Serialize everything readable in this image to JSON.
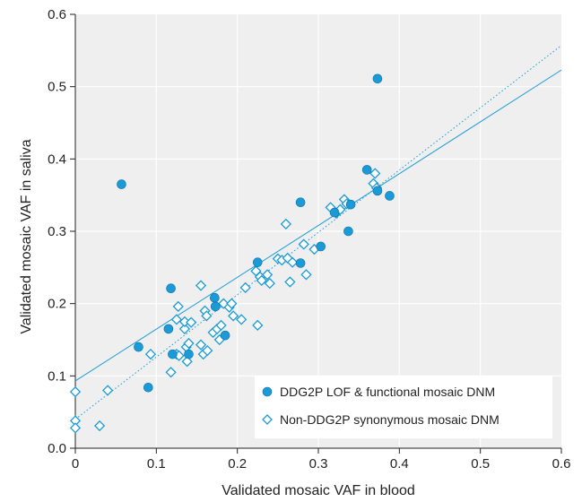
{
  "chart_data": {
    "type": "scatter",
    "xlabel": "Validated mosaic VAF in blood",
    "ylabel": "Validated mosaic VAF in saliva",
    "xlim": [
      0,
      0.6
    ],
    "ylim": [
      0,
      0.6
    ],
    "xticks": [
      "0",
      "0.1",
      "0.2",
      "0.3",
      "0.4",
      "0.5",
      "0.6"
    ],
    "yticks": [
      "0.0",
      "0.1",
      "0.2",
      "0.3",
      "0.4",
      "0.5",
      "0.6"
    ],
    "grid": true,
    "legend_position": "bottom-right",
    "colors": {
      "accent": "#1a9bd7",
      "background": "#efefef",
      "grid": "#ffffff"
    },
    "series": [
      {
        "name": "DDG2P LOF & functional mosaic DNM",
        "marker": "filled-circle",
        "points": [
          [
            0.057,
            0.365
          ],
          [
            0.373,
            0.511
          ],
          [
            0.078,
            0.14
          ],
          [
            0.09,
            0.084
          ],
          [
            0.115,
            0.165
          ],
          [
            0.118,
            0.221
          ],
          [
            0.12,
            0.13
          ],
          [
            0.14,
            0.13
          ],
          [
            0.172,
            0.208
          ],
          [
            0.173,
            0.196
          ],
          [
            0.185,
            0.156
          ],
          [
            0.225,
            0.257
          ],
          [
            0.278,
            0.34
          ],
          [
            0.278,
            0.256
          ],
          [
            0.303,
            0.279
          ],
          [
            0.32,
            0.326
          ],
          [
            0.337,
            0.3
          ],
          [
            0.34,
            0.337
          ],
          [
            0.36,
            0.385
          ],
          [
            0.373,
            0.356
          ],
          [
            0.388,
            0.349
          ]
        ]
      },
      {
        "name": "Non-DDG2P synonymous mosaic DNM",
        "marker": "open-diamond",
        "points": [
          [
            0.0,
            0.078
          ],
          [
            0.0,
            0.038
          ],
          [
            0.0,
            0.028
          ],
          [
            0.03,
            0.031
          ],
          [
            0.04,
            0.08
          ],
          [
            0.093,
            0.13
          ],
          [
            0.118,
            0.105
          ],
          [
            0.125,
            0.178
          ],
          [
            0.127,
            0.196
          ],
          [
            0.125,
            0.13
          ],
          [
            0.128,
            0.128
          ],
          [
            0.135,
            0.165
          ],
          [
            0.135,
            0.175
          ],
          [
            0.137,
            0.14
          ],
          [
            0.138,
            0.12
          ],
          [
            0.14,
            0.145
          ],
          [
            0.143,
            0.174
          ],
          [
            0.155,
            0.225
          ],
          [
            0.155,
            0.143
          ],
          [
            0.158,
            0.13
          ],
          [
            0.16,
            0.19
          ],
          [
            0.162,
            0.183
          ],
          [
            0.163,
            0.135
          ],
          [
            0.17,
            0.16
          ],
          [
            0.175,
            0.165
          ],
          [
            0.178,
            0.15
          ],
          [
            0.18,
            0.17
          ],
          [
            0.183,
            0.2
          ],
          [
            0.19,
            0.195
          ],
          [
            0.193,
            0.2
          ],
          [
            0.195,
            0.183
          ],
          [
            0.205,
            0.178
          ],
          [
            0.21,
            0.222
          ],
          [
            0.223,
            0.245
          ],
          [
            0.225,
            0.17
          ],
          [
            0.228,
            0.237
          ],
          [
            0.23,
            0.232
          ],
          [
            0.237,
            0.24
          ],
          [
            0.24,
            0.228
          ],
          [
            0.25,
            0.262
          ],
          [
            0.255,
            0.26
          ],
          [
            0.26,
            0.31
          ],
          [
            0.262,
            0.263
          ],
          [
            0.265,
            0.23
          ],
          [
            0.268,
            0.257
          ],
          [
            0.282,
            0.282
          ],
          [
            0.285,
            0.24
          ],
          [
            0.295,
            0.275
          ],
          [
            0.315,
            0.333
          ],
          [
            0.322,
            0.325
          ],
          [
            0.327,
            0.33
          ],
          [
            0.332,
            0.344
          ],
          [
            0.335,
            0.338
          ],
          [
            0.368,
            0.366
          ],
          [
            0.37,
            0.38
          ],
          [
            0.372,
            0.36
          ]
        ]
      }
    ],
    "fit_lines": [
      {
        "style": "solid",
        "from": [
          0,
          0.093
        ],
        "to": [
          0.6,
          0.523
        ]
      },
      {
        "style": "dotted",
        "from": [
          0,
          0.04
        ],
        "to": [
          0.6,
          0.557
        ]
      }
    ]
  }
}
